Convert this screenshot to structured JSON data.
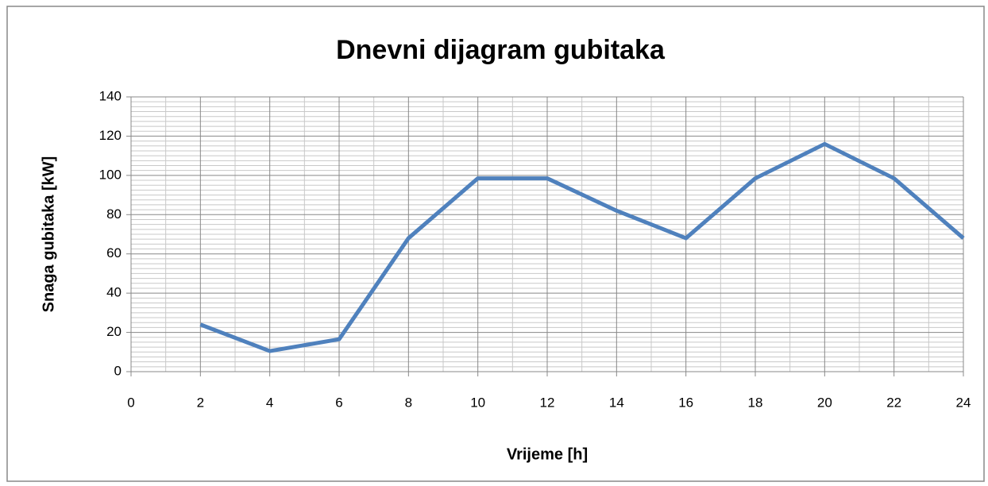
{
  "chart_data": {
    "type": "line",
    "title": "Dnevni dijagram gubitaka",
    "x_label": "Vrijeme [h]",
    "y_label": "Snaga gubitaka [kW]",
    "x": [
      2,
      4,
      6,
      8,
      10,
      12,
      14,
      16,
      18,
      20,
      22,
      24
    ],
    "series": [
      {
        "color": "#4f81bd",
        "values": [
          24,
          10.5,
          16.5,
          68,
          98.5,
          98.5,
          82,
          68,
          98.5,
          116,
          98.5,
          68
        ]
      }
    ],
    "xlim": [
      0,
      24
    ],
    "xticks": [
      0,
      2,
      4,
      6,
      8,
      10,
      12,
      14,
      16,
      18,
      20,
      22,
      24
    ],
    "ylim": [
      0,
      140
    ],
    "yticks": [
      0,
      20,
      40,
      60,
      80,
      100,
      120,
      140
    ],
    "grid": true,
    "minor_grid": true
  }
}
